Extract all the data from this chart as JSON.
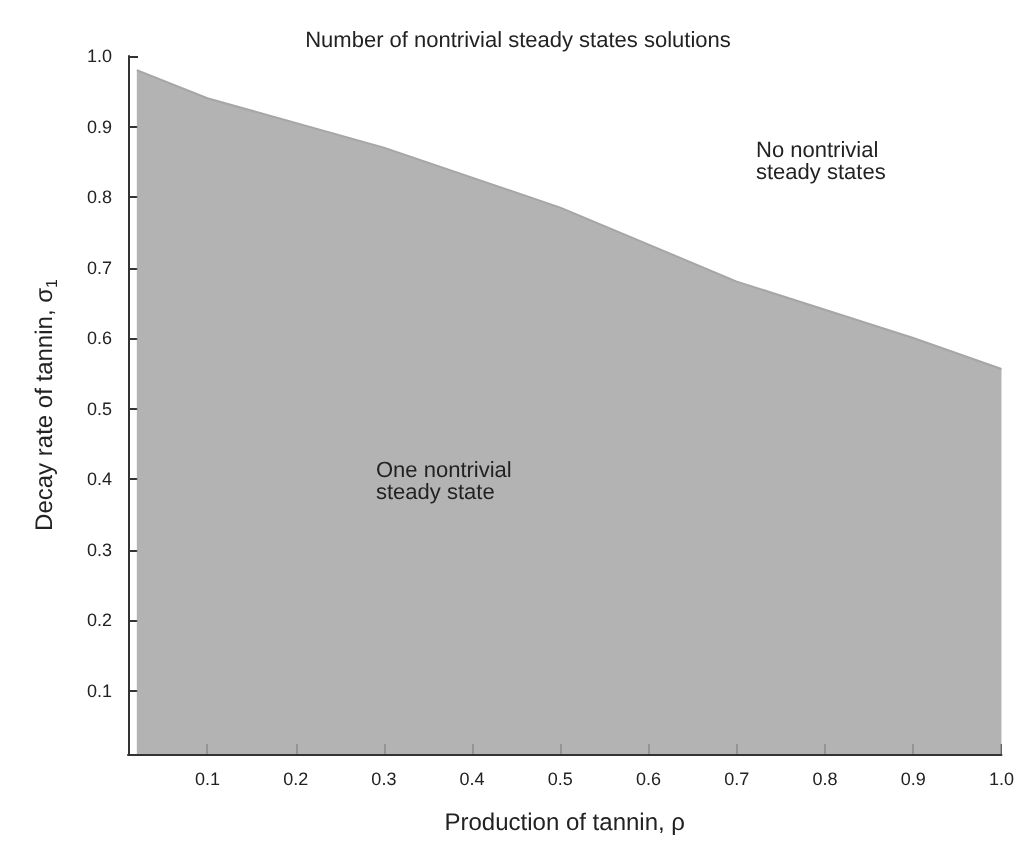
{
  "chart_data": {
    "type": "area",
    "title": "Number of nontrivial steady states solutions",
    "xlabel": "Production of tannin, ρ",
    "ylabel": "Decay rate of tannin, σ$_{1}$",
    "x": [
      0.02,
      0.1,
      0.3,
      0.5,
      0.7,
      0.9,
      1.0
    ],
    "values": [
      0.98,
      0.94,
      0.87,
      0.785,
      0.68,
      0.6,
      0.556
    ],
    "color": "#a6a6a6",
    "xlim": [
      0.01,
      1.0
    ],
    "ylim": [
      0.01,
      1.0
    ],
    "xticks": [
      0.1,
      0.2,
      0.3,
      0.4,
      0.5,
      0.6,
      0.7,
      0.8,
      0.9,
      {
        "value": 1,
        "label": "1.0"
      }
    ],
    "yticks": [
      0.1,
      0.2,
      0.3,
      0.4,
      0.5,
      0.6,
      0.7,
      0.8,
      0.9,
      {
        "value": 1,
        "label": "1.0"
      }
    ],
    "grid": false,
    "annotations": [
      "No nontrivial\nsteady states",
      "One nontrivial\nsteady state"
    ]
  }
}
